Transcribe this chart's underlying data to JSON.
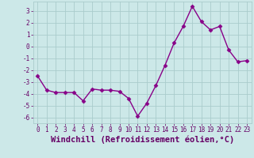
{
  "x": [
    0,
    1,
    2,
    3,
    4,
    5,
    6,
    7,
    8,
    9,
    10,
    11,
    12,
    13,
    14,
    15,
    16,
    17,
    18,
    19,
    20,
    21,
    22,
    23
  ],
  "y": [
    -2.5,
    -3.7,
    -3.9,
    -3.9,
    -3.9,
    -4.6,
    -3.6,
    -3.7,
    -3.7,
    -3.8,
    -4.4,
    -5.9,
    -4.8,
    -3.3,
    -1.6,
    0.3,
    1.7,
    3.4,
    2.1,
    1.4,
    1.7,
    -0.3,
    -1.3,
    -1.2
  ],
  "line_color": "#880088",
  "marker": "D",
  "marker_size": 2.5,
  "bg_color": "#cce8e8",
  "grid_color": "#aacccc",
  "xlabel": "Windchill (Refroidissement éolien,°C)",
  "ylim": [
    -6.5,
    3.8
  ],
  "xlim": [
    -0.5,
    23.5
  ],
  "yticks": [
    -6,
    -5,
    -4,
    -3,
    -2,
    -1,
    0,
    1,
    2,
    3
  ],
  "xticks": [
    0,
    1,
    2,
    3,
    4,
    5,
    6,
    7,
    8,
    9,
    10,
    11,
    12,
    13,
    14,
    15,
    16,
    17,
    18,
    19,
    20,
    21,
    22,
    23
  ],
  "tick_label_fontsize": 5.5,
  "xlabel_fontsize": 7.5,
  "line_width": 1.0,
  "text_color": "#660066"
}
